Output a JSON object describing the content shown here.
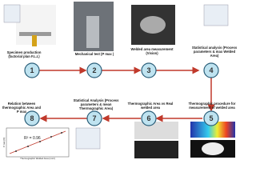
{
  "steps": [
    {
      "number": "1",
      "label": "Specimen production (factorial plan F.L.I.)"
    },
    {
      "number": "2",
      "label": "Mechanical test (P max )"
    },
    {
      "number": "3",
      "label": "Welded area measurement (Vision)"
    },
    {
      "number": "4",
      "label": "Statistical analysis (Process parameters & max Welded Area)"
    },
    {
      "number": "5",
      "label": "Thermographic procedure for measurement of welded area"
    },
    {
      "number": "6",
      "label": "Thermographic Area vs Real welded area"
    },
    {
      "number": "7",
      "label": "Statistical Analysis (Process parameters & mean Thermographic Area)"
    },
    {
      "number": "8",
      "label": "Relation between thermographic Area and P max"
    }
  ],
  "plot": {
    "annotation": "R² = 0.96",
    "x_label": "Thermographic Welded Area (mm²)",
    "y_label": "P max (N)"
  }
}
